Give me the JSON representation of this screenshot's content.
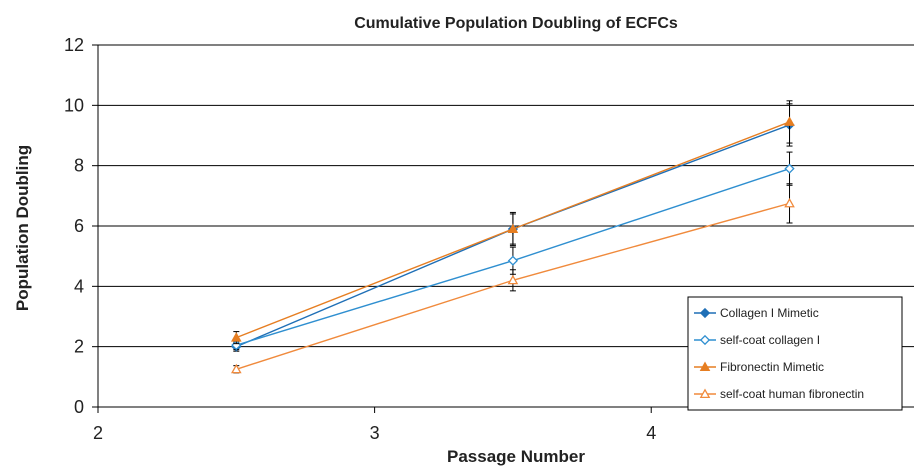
{
  "chart_data": {
    "type": "line",
    "title": "Cumulative Population Doubling of ECFCs",
    "xlabel": "Passage Number",
    "ylabel": "Population Doubling",
    "xlim": [
      2,
      4.95
    ],
    "ylim": [
      0,
      12
    ],
    "x_ticks": [
      "2",
      "3",
      "4"
    ],
    "y_ticks": [
      "0",
      "2",
      "4",
      "6",
      "8",
      "10",
      "12"
    ],
    "grid": "horizontal",
    "legend_position": "bottom-right",
    "series": [
      {
        "name": "Collagen I Mimetic",
        "color": "#1f6fb6",
        "marker": "diamond-filled",
        "x": [
          2.5,
          3.5,
          4.5
        ],
        "y": [
          2.0,
          5.9,
          9.35
        ],
        "err": [
          0.15,
          0.5,
          0.7
        ]
      },
      {
        "name": "self-coat collagen I",
        "color": "#2f8fd0",
        "marker": "diamond-open",
        "x": [
          2.5,
          3.5,
          4.5
        ],
        "y": [
          2.05,
          4.85,
          7.9
        ],
        "err": [
          0.15,
          0.45,
          0.55
        ]
      },
      {
        "name": "Fibronectin Mimetic",
        "color": "#e67e22",
        "marker": "triangle-filled",
        "x": [
          2.5,
          3.5,
          4.5
        ],
        "y": [
          2.3,
          5.9,
          9.45
        ],
        "err": [
          0.2,
          0.55,
          0.7
        ]
      },
      {
        "name": "self-coat human fibronectin",
        "color": "#f08a3c",
        "marker": "triangle-open",
        "x": [
          2.5,
          3.5,
          4.5
        ],
        "y": [
          1.25,
          4.2,
          6.75
        ],
        "err": [
          0.12,
          0.35,
          0.65
        ]
      }
    ]
  }
}
